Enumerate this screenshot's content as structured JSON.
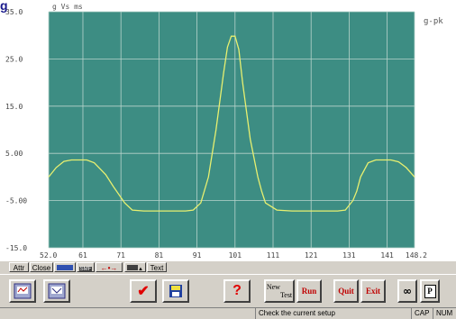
{
  "window": {
    "logo_letter": "g"
  },
  "chart_data": {
    "type": "line",
    "title": "g Vs ms",
    "ylabel_right": "g-pk",
    "xlim": [
      52.0,
      148.2
    ],
    "ylim": [
      -15.0,
      35.0
    ],
    "yticks": [
      35.0,
      25.0,
      15.0,
      5.0,
      -5.0,
      -15.0
    ],
    "ytick_labels": [
      "35.0",
      "25.0",
      "15.0",
      "5.00",
      "-5.00",
      "-15.0"
    ],
    "xticks": [
      52.0,
      61,
      71,
      81,
      91,
      101,
      111,
      121,
      131,
      141,
      148.2
    ],
    "xtick_labels": [
      "52.0",
      "61",
      "71",
      "81",
      "91",
      "101",
      "111",
      "121",
      "131",
      "141",
      "148.2"
    ],
    "grid": true,
    "colors": {
      "plot_bg": "#3d8d83",
      "line": "#e8f070",
      "grid": "#b8d4cc"
    },
    "series": [
      {
        "x": [
          52,
          54,
          56,
          58,
          62,
          64,
          67,
          69,
          72,
          74,
          77,
          80,
          83,
          86,
          88,
          90,
          92,
          94,
          96,
          98,
          99,
          100,
          101,
          102,
          103,
          105,
          107,
          108,
          109,
          112,
          116,
          120,
          124,
          128,
          130,
          132,
          133,
          134,
          136,
          138,
          142,
          144,
          146,
          148.2
        ],
        "y": [
          0.0,
          2.0,
          3.3,
          3.6,
          3.6,
          3.0,
          0.5,
          -2.0,
          -5.5,
          -7.0,
          -7.2,
          -7.2,
          -7.2,
          -7.2,
          -7.2,
          -7.0,
          -5.5,
          0.0,
          10.0,
          22.0,
          27.5,
          29.8,
          29.8,
          27.0,
          20.0,
          8.0,
          0.0,
          -3.0,
          -5.5,
          -7.0,
          -7.2,
          -7.2,
          -7.2,
          -7.2,
          -7.0,
          -5.0,
          -3.0,
          0.0,
          3.0,
          3.6,
          3.6,
          3.2,
          2.0,
          0.0
        ]
      }
    ]
  },
  "attr_bar": {
    "attr": "Attr",
    "close": "Close",
    "smf": "SMF",
    "text": "Text"
  },
  "toolbar": {
    "new_test": "New",
    "new_test_sub": "Test",
    "run": "Run",
    "quit": "Quit",
    "exit": "Exit",
    "help": "?"
  },
  "status": {
    "message": "Check the current setup",
    "cap": "CAP",
    "num": "NUM"
  }
}
